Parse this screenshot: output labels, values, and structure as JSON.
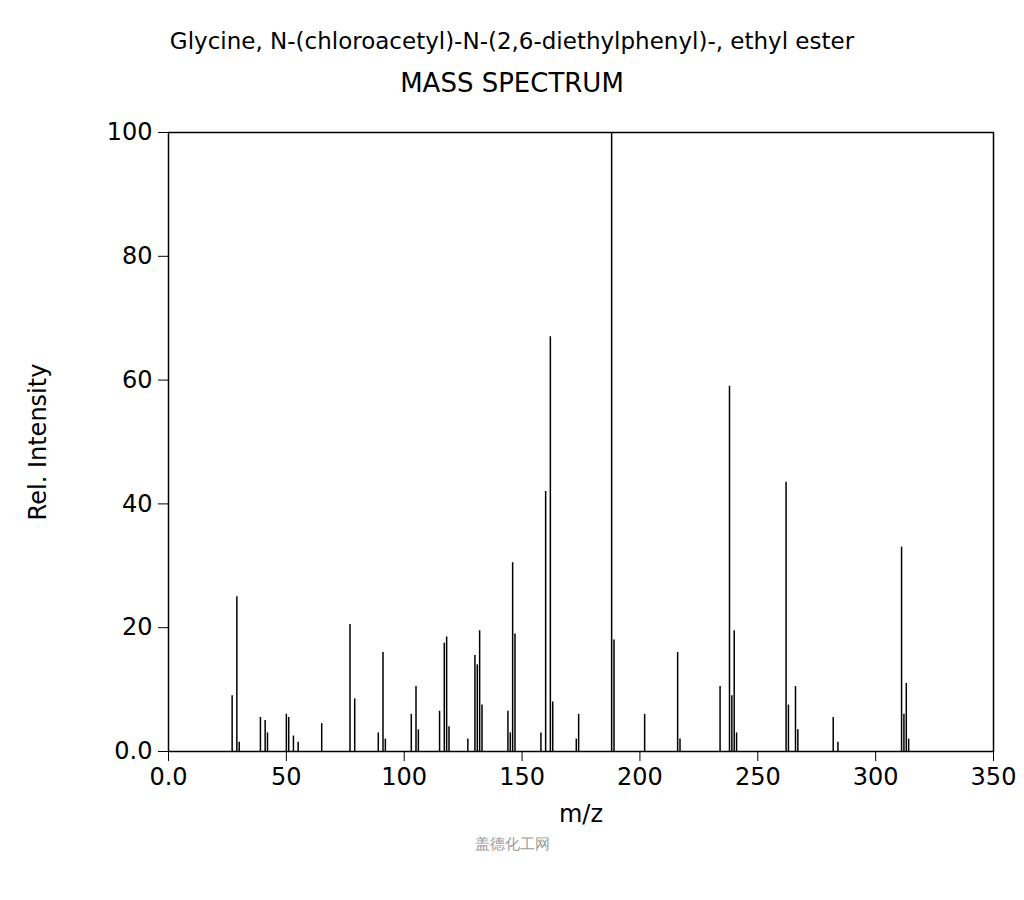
{
  "chart_data": {
    "type": "bar",
    "title": "Glycine, N-(chloroacetyl)-N-(2,6-diethylphenyl)-, ethyl ester",
    "subtitle": "MASS SPECTRUM",
    "caption": "盖德化工网",
    "x_label": "m/z",
    "y_label": "Rel. Intensity",
    "color": "#000000",
    "x": [
      27,
      29,
      30,
      39,
      41,
      42,
      50,
      51,
      53,
      55,
      65,
      77,
      79,
      89,
      91,
      92,
      103,
      105,
      106,
      115,
      117,
      118,
      119,
      127,
      130,
      131,
      132,
      133,
      144,
      145,
      146,
      147,
      158,
      160,
      162,
      163,
      173,
      174,
      188,
      189,
      202,
      216,
      217,
      234,
      238,
      239,
      240,
      241,
      262,
      263,
      266,
      267,
      282,
      284,
      311,
      312,
      313,
      314
    ],
    "values": [
      9,
      25,
      1.5,
      5.5,
      5,
      3,
      6,
      5.5,
      2.5,
      1.5,
      4.5,
      20.5,
      8.5,
      3,
      16,
      2,
      6,
      10.5,
      3.5,
      6.5,
      17.5,
      18.5,
      4,
      2,
      15.5,
      14,
      19.5,
      7.5,
      6.5,
      3,
      30.5,
      19,
      3,
      42,
      67,
      8,
      2,
      6,
      100,
      18,
      6,
      16,
      2,
      10.5,
      59,
      9,
      19.5,
      3,
      43.5,
      7.5,
      10.5,
      3.5,
      5.5,
      1.5,
      33,
      6,
      11,
      2
    ],
    "xlim": [
      0,
      350
    ],
    "xticks": [
      {
        "value": 0,
        "label": "0.0"
      },
      50,
      100,
      150,
      200,
      250,
      300,
      350
    ],
    "ylim": [
      0,
      100
    ],
    "yticks": [
      {
        "value": 0,
        "label": "0.0"
      },
      20,
      40,
      60,
      80,
      100
    ],
    "grid": false
  }
}
